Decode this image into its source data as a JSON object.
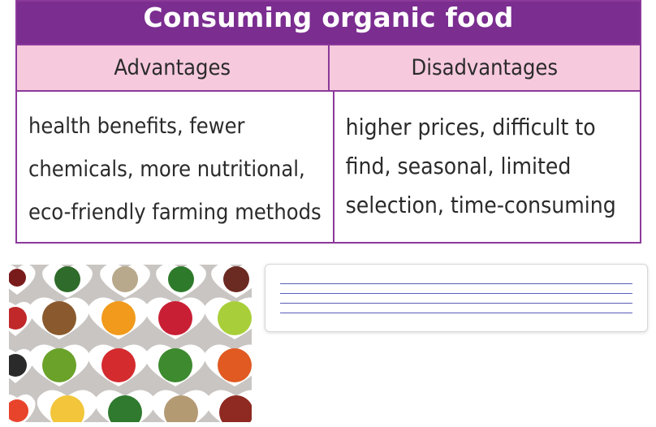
{
  "table": {
    "title": "Consuming organic food",
    "headers": [
      "Advantages",
      "Disadvantages"
    ],
    "advantages_lines": [
      "health benefits, fewer",
      "chemicals, more nutritional,",
      "eco-friendly farming methods"
    ],
    "disadvantages_lines": [
      "higher prices, difficult to",
      "find, seasonal, limited",
      "selection, time-consuming"
    ]
  },
  "image": {
    "subject": "heart-shaped bowls of fruits, vegetables, nuts and seeds"
  },
  "answer_box": {
    "lines": 4
  }
}
